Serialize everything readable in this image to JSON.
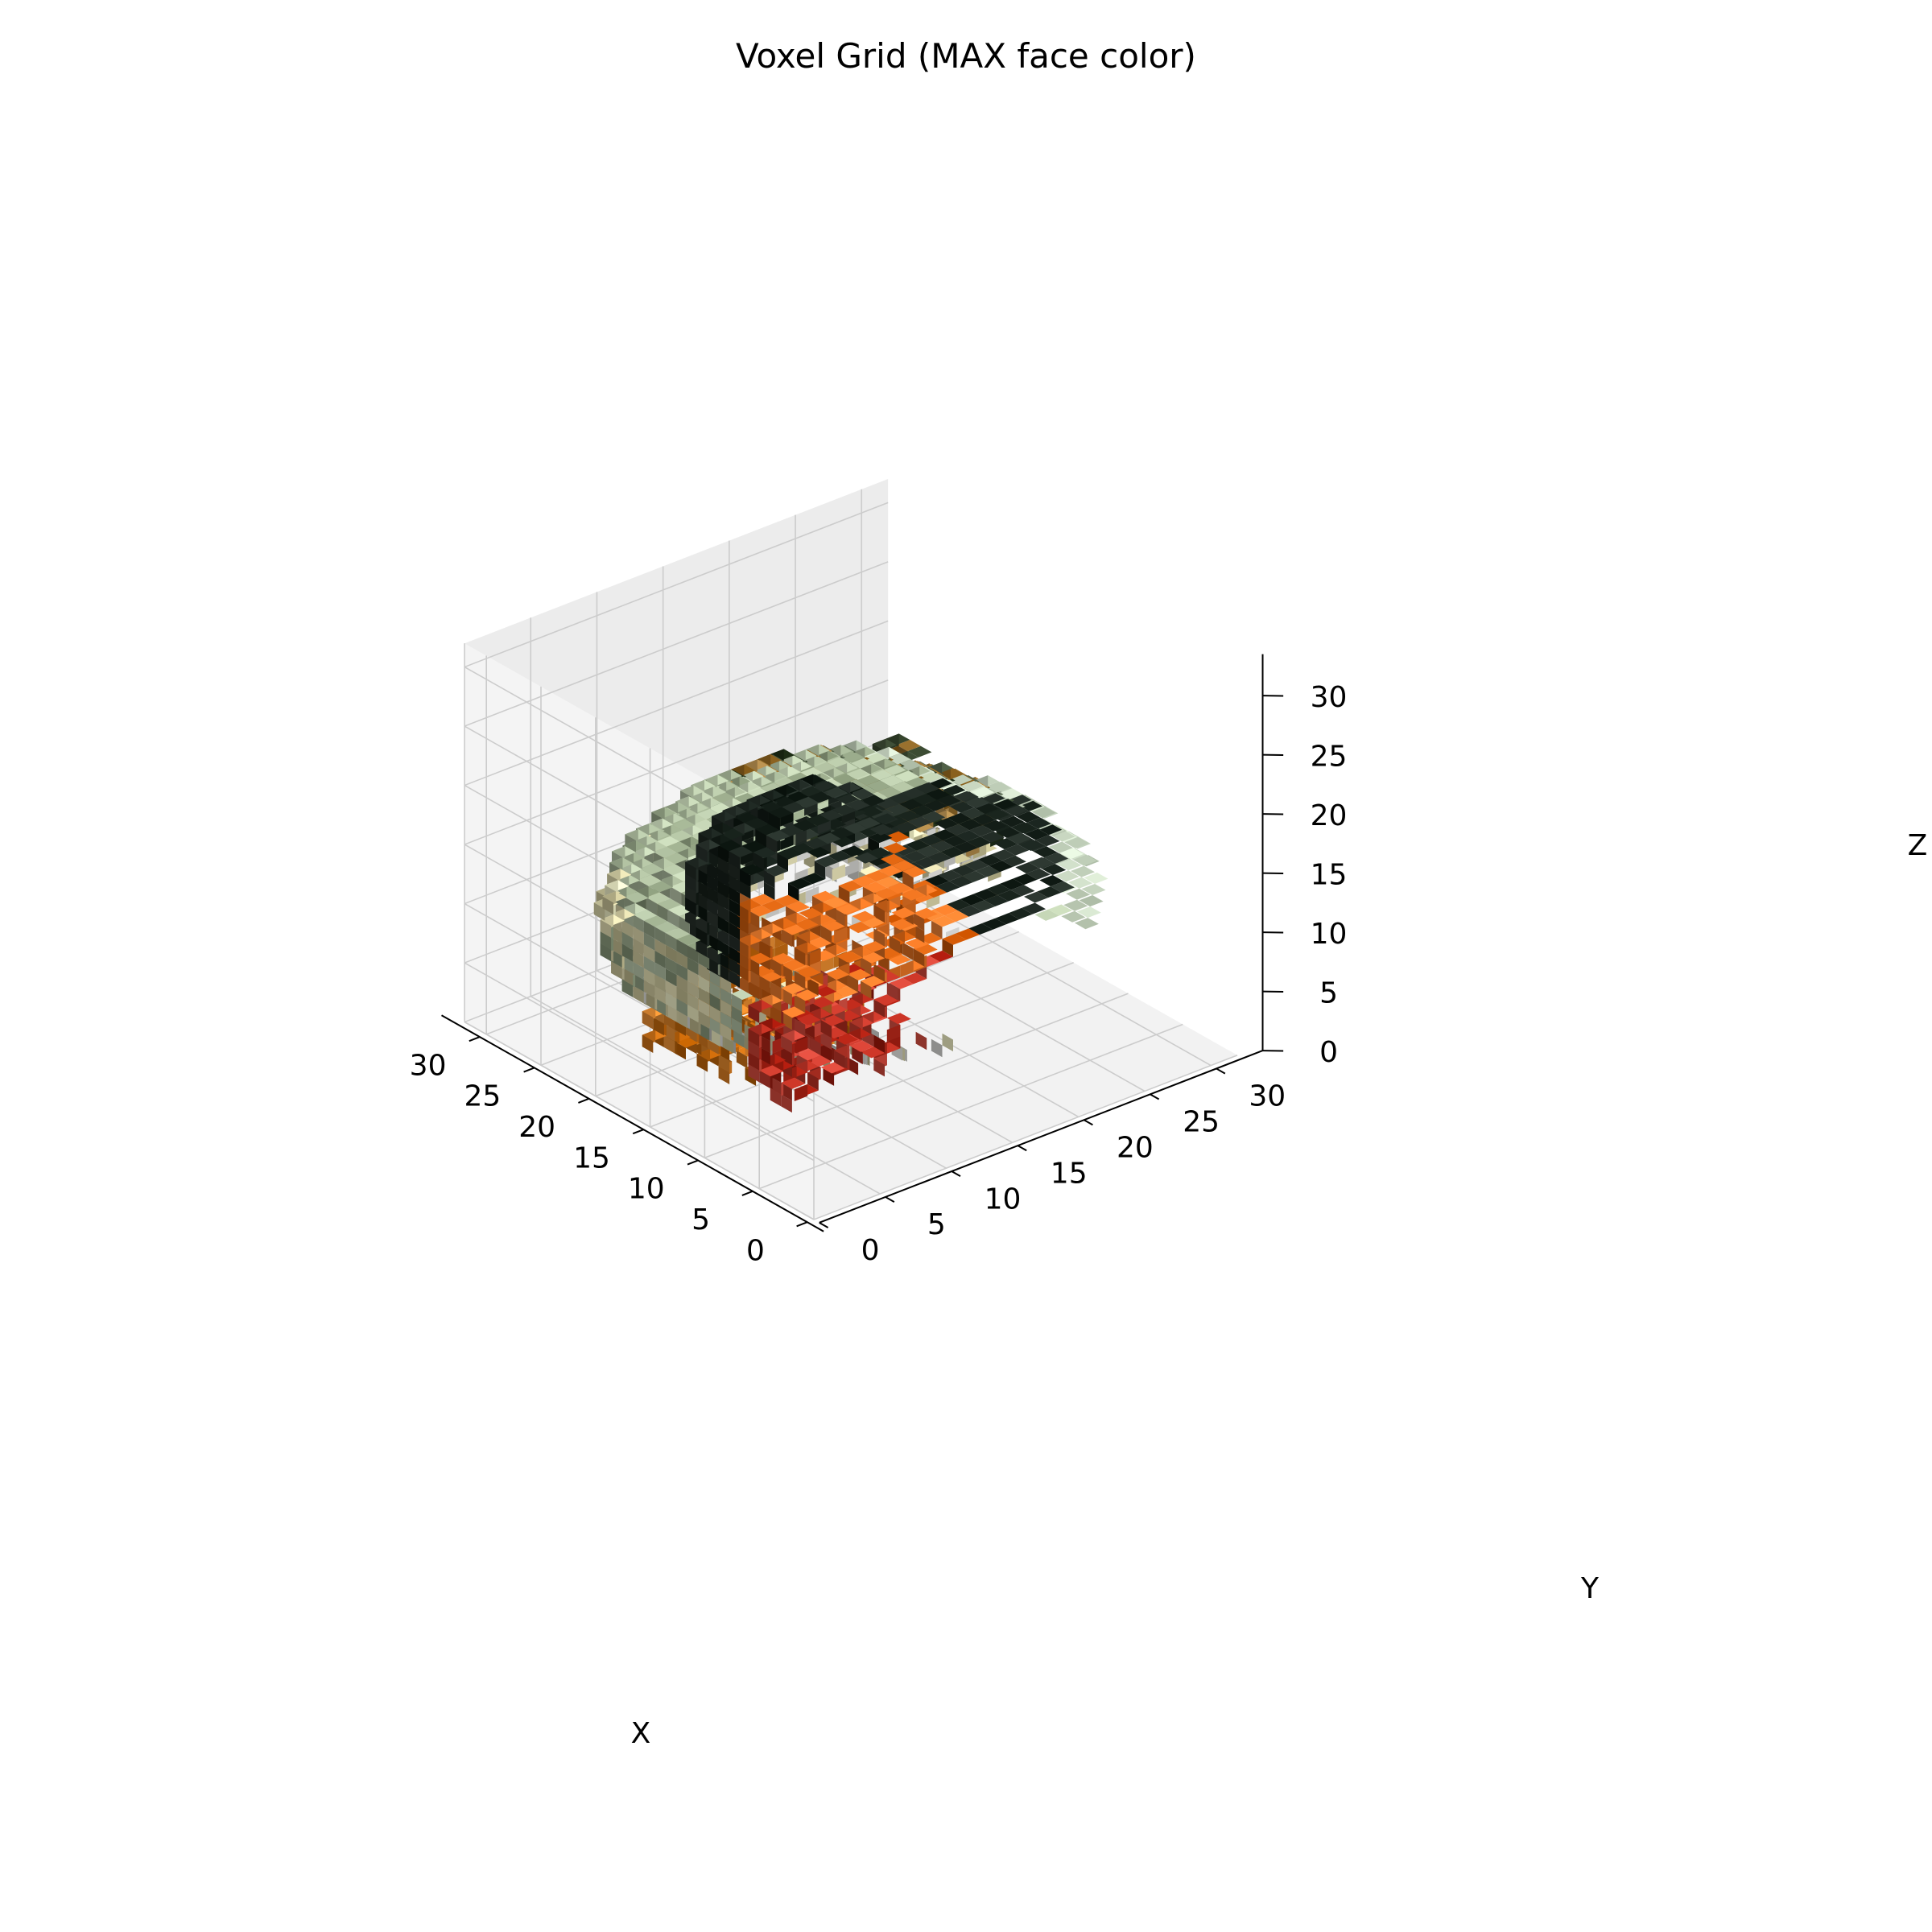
{
  "chart_data": {
    "type": "voxel",
    "title": "Voxel Grid (MAX face color)",
    "xlabel": "X",
    "ylabel": "Y",
    "zlabel": "Z",
    "xlim": [
      0,
      32
    ],
    "ylim": [
      0,
      32
    ],
    "zlim": [
      0,
      32
    ],
    "xticks": [
      "0",
      "5",
      "10",
      "15",
      "20",
      "25",
      "30"
    ],
    "yticks": [
      "0",
      "5",
      "10",
      "15",
      "20",
      "25",
      "30"
    ],
    "zticks": [
      "0",
      "5",
      "10",
      "15",
      "20",
      "25",
      "30"
    ],
    "grid": true,
    "colors": {
      "pane": "#f2f2f2",
      "grid": "#cccccc",
      "head": "#1c2620",
      "comb": "#e06a18",
      "wattle": "#c8382a",
      "breast": "#e8e2b4",
      "belly": "#e4e4e0",
      "back": "#a9b99a",
      "wing": "#9b7434",
      "tail": "#c4d2bd",
      "feet": "#e08020"
    }
  }
}
